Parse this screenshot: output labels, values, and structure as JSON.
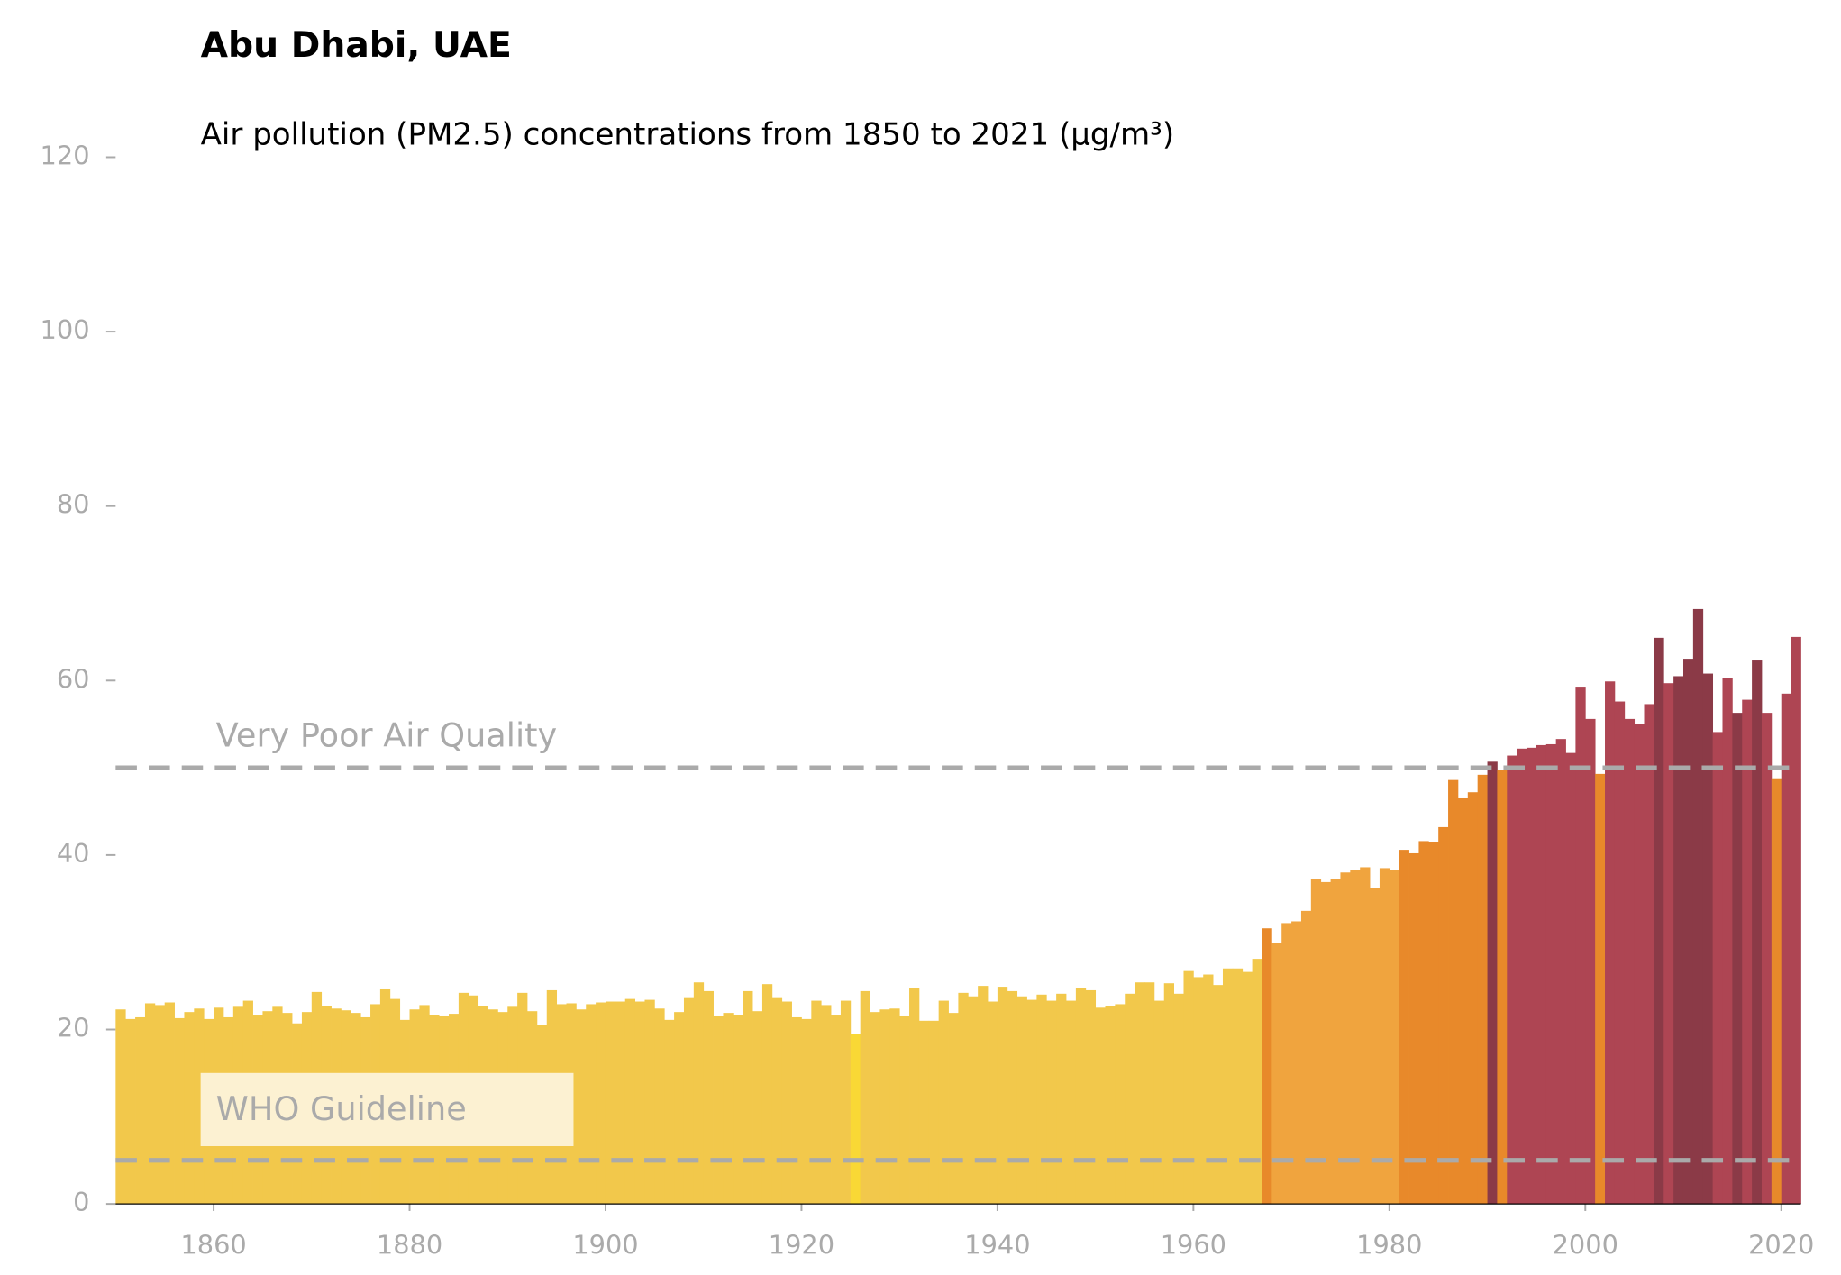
{
  "chart_data": {
    "type": "bar",
    "title": "Abu Dhabi, UAE",
    "subtitle": "Air pollution (PM2.5) concentrations from 1850 to 2021 (µg/m³)",
    "x": [
      1850,
      1851,
      1852,
      1853,
      1854,
      1855,
      1856,
      1857,
      1858,
      1859,
      1860,
      1861,
      1862,
      1863,
      1864,
      1865,
      1866,
      1867,
      1868,
      1869,
      1870,
      1871,
      1872,
      1873,
      1874,
      1875,
      1876,
      1877,
      1878,
      1879,
      1880,
      1881,
      1882,
      1883,
      1884,
      1885,
      1886,
      1887,
      1888,
      1889,
      1890,
      1891,
      1892,
      1893,
      1894,
      1895,
      1896,
      1897,
      1898,
      1899,
      1900,
      1901,
      1902,
      1903,
      1904,
      1905,
      1906,
      1907,
      1908,
      1909,
      1910,
      1911,
      1912,
      1913,
      1914,
      1915,
      1916,
      1917,
      1918,
      1919,
      1920,
      1921,
      1922,
      1923,
      1924,
      1925,
      1926,
      1927,
      1928,
      1929,
      1930,
      1931,
      1932,
      1933,
      1934,
      1935,
      1936,
      1937,
      1938,
      1939,
      1940,
      1941,
      1942,
      1943,
      1944,
      1945,
      1946,
      1947,
      1948,
      1949,
      1950,
      1951,
      1952,
      1953,
      1954,
      1955,
      1956,
      1957,
      1958,
      1959,
      1960,
      1961,
      1962,
      1963,
      1964,
      1965,
      1966,
      1967,
      1968,
      1969,
      1970,
      1971,
      1972,
      1973,
      1974,
      1975,
      1976,
      1977,
      1978,
      1979,
      1980,
      1981,
      1982,
      1983,
      1984,
      1985,
      1986,
      1987,
      1988,
      1989,
      1990,
      1991,
      1992,
      1993,
      1994,
      1995,
      1996,
      1997,
      1998,
      1999,
      2000,
      2001,
      2002,
      2003,
      2004,
      2005,
      2006,
      2007,
      2008,
      2009,
      2010,
      2011,
      2012,
      2013,
      2014,
      2015,
      2016,
      2017,
      2018,
      2019,
      2020,
      2021
    ],
    "values": [
      22.3,
      21.2,
      21.4,
      23.0,
      22.8,
      23.1,
      21.3,
      22.0,
      22.4,
      21.2,
      22.5,
      21.4,
      22.6,
      23.3,
      21.6,
      22.1,
      22.6,
      21.9,
      20.7,
      22.0,
      24.3,
      22.7,
      22.4,
      22.2,
      21.9,
      21.4,
      22.9,
      24.6,
      23.5,
      21.1,
      22.3,
      22.8,
      21.7,
      21.5,
      21.8,
      24.2,
      23.9,
      22.7,
      22.3,
      22.0,
      22.6,
      24.2,
      22.1,
      20.5,
      24.5,
      22.9,
      23.0,
      22.3,
      22.9,
      23.1,
      23.2,
      23.2,
      23.5,
      23.2,
      23.4,
      22.4,
      21.1,
      22.0,
      23.6,
      25.4,
      24.4,
      21.5,
      21.9,
      21.7,
      24.4,
      22.1,
      25.2,
      23.6,
      23.2,
      21.4,
      21.2,
      23.3,
      22.8,
      21.6,
      23.3,
      19.5,
      24.4,
      22.0,
      22.3,
      22.4,
      21.5,
      24.7,
      21.0,
      21.0,
      23.3,
      21.9,
      24.2,
      23.8,
      25.0,
      23.2,
      24.9,
      24.4,
      23.8,
      23.4,
      24.0,
      23.3,
      24.1,
      23.3,
      24.7,
      24.5,
      22.5,
      22.7,
      22.9,
      24.1,
      25.4,
      25.4,
      23.3,
      25.3,
      24.1,
      26.7,
      26.0,
      26.3,
      25.1,
      27.0,
      27.0,
      26.6,
      28.1,
      31.6,
      29.9,
      32.2,
      32.4,
      33.6,
      37.2,
      36.9,
      37.2,
      38.0,
      38.3,
      38.6,
      36.2,
      38.5,
      38.3,
      40.6,
      40.2,
      41.6,
      41.5,
      43.2,
      48.6,
      46.5,
      47.2,
      49.2,
      50.7,
      49.8,
      51.4,
      52.2,
      52.3,
      52.6,
      52.7,
      53.3,
      51.7,
      59.3,
      55.6,
      49.3,
      59.9,
      57.6,
      55.6,
      55.0,
      57.3,
      64.9,
      59.7,
      60.5,
      62.5,
      68.2,
      60.8,
      54.1,
      60.3,
      56.3,
      57.8,
      62.3,
      56.3,
      48.8,
      58.5,
      65.0
    ],
    "colors": [
      "#f2c84b",
      "#f2c84b",
      "#f2c84b",
      "#f2c84b",
      "#f2c84b",
      "#f2c84b",
      "#f2c84b",
      "#f2c84b",
      "#f2c84b",
      "#f2c84b",
      "#f2c84b",
      "#f2c84b",
      "#f2c84b",
      "#f2c84b",
      "#f2c84b",
      "#f2c84b",
      "#f2c84b",
      "#f2c84b",
      "#f2c84b",
      "#f2c84b",
      "#f2c84b",
      "#f2c84b",
      "#f2c84b",
      "#f2c84b",
      "#f2c84b",
      "#f2c84b",
      "#f2c84b",
      "#f2c84b",
      "#f2c84b",
      "#f2c84b",
      "#f2c84b",
      "#f2c84b",
      "#f2c84b",
      "#f2c84b",
      "#f2c84b",
      "#f2c84b",
      "#f2c84b",
      "#f2c84b",
      "#f2c84b",
      "#f2c84b",
      "#f2c84b",
      "#f2c84b",
      "#f2c84b",
      "#f2c84b",
      "#f2c84b",
      "#f2c84b",
      "#f2c84b",
      "#f2c84b",
      "#f2c84b",
      "#f2c84b",
      "#f2c84b",
      "#f2c84b",
      "#f2c84b",
      "#f2c84b",
      "#f2c84b",
      "#f2c84b",
      "#f2c84b",
      "#f2c84b",
      "#f2c84b",
      "#f2c84b",
      "#f2c84b",
      "#f2c84b",
      "#f2c84b",
      "#f2c84b",
      "#f2c84b",
      "#f2c84b",
      "#f2c84b",
      "#f2c84b",
      "#f2c84b",
      "#f2c84b",
      "#f2c84b",
      "#f2c84b",
      "#f2c84b",
      "#f2c84b",
      "#f2c84b",
      "#f9d835",
      "#f2c84b",
      "#f2c84b",
      "#f2c84b",
      "#f2c84b",
      "#f2c84b",
      "#f2c84b",
      "#f2c84b",
      "#f2c84b",
      "#f2c84b",
      "#f2c84b",
      "#f2c84b",
      "#f2c84b",
      "#f2c84b",
      "#f2c84b",
      "#f2c84b",
      "#f2c84b",
      "#f2c84b",
      "#f2c84b",
      "#f2c84b",
      "#f2c84b",
      "#f2c84b",
      "#f2c84b",
      "#f2c84b",
      "#f2c84b",
      "#f2c84b",
      "#f2c84b",
      "#f2c84b",
      "#f2c84b",
      "#f2c84b",
      "#f2c84b",
      "#f2c84b",
      "#f2c84b",
      "#f2c84b",
      "#f2c84b",
      "#f2c84b",
      "#f2c84b",
      "#f2c84b",
      "#f2c84b",
      "#f2c84b",
      "#f2c84b",
      "#f2c84b",
      "#e8892a",
      "#f0a43e",
      "#f0a43e",
      "#f0a43e",
      "#f0a43e",
      "#f0a43e",
      "#f0a43e",
      "#f0a43e",
      "#f0a43e",
      "#f0a43e",
      "#f0a43e",
      "#f0a43e",
      "#f0a43e",
      "#f0a43e",
      "#e8892a",
      "#e8892a",
      "#e8892a",
      "#e8892a",
      "#e8892a",
      "#e8892a",
      "#e8892a",
      "#e8892a",
      "#e8892a",
      "#8b3a47",
      "#e8892a",
      "#ae4553",
      "#ae4553",
      "#ae4553",
      "#ae4553",
      "#ae4553",
      "#ae4553",
      "#ae4553",
      "#ae4553",
      "#ae4553",
      "#e8892a",
      "#ae4553",
      "#ae4553",
      "#ae4553",
      "#ae4553",
      "#ae4553",
      "#8b3a47",
      "#ae4553",
      "#8b3a47",
      "#8b3a47",
      "#8b3a47",
      "#8b3a47",
      "#ae4553",
      "#ae4553",
      "#8b3a47",
      "#ae4553",
      "#8b3a47",
      "#ae4553",
      "#e8892a",
      "#ae4553",
      "#ae4553"
    ],
    "xlim": [
      1850,
      2022
    ],
    "ylim": [
      0,
      120
    ],
    "xticks": [
      1860,
      1880,
      1900,
      1920,
      1940,
      1960,
      1980,
      2000,
      2020
    ],
    "yticks": [
      0,
      20,
      40,
      60,
      80,
      100,
      120
    ],
    "reference_lines": [
      {
        "label": "WHO Guideline",
        "value": 5
      },
      {
        "label": "Very Poor Air Quality",
        "value": 50
      }
    ],
    "reference_color": "#aaaaaa"
  }
}
